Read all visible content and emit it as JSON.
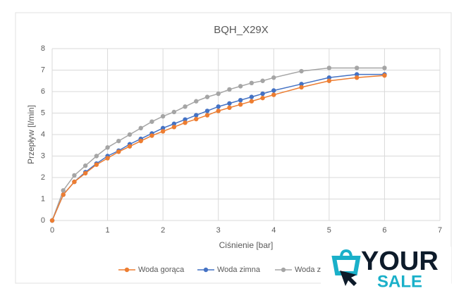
{
  "chart_data": {
    "type": "line",
    "title": "BQH_X29X",
    "xlabel": "Ciśnienie [bar]",
    "ylabel": "Przepływ [l/min]",
    "x": [
      0,
      0.2,
      0.4,
      0.6,
      0.8,
      1.0,
      1.2,
      1.4,
      1.6,
      1.8,
      2.0,
      2.2,
      2.4,
      2.6,
      2.8,
      3.0,
      3.2,
      3.4,
      3.6,
      3.8,
      4.0,
      4.5,
      5.0,
      5.5,
      6.0
    ],
    "series": [
      {
        "name": "Woda gorąca",
        "color": "#ed7d31",
        "values": [
          0,
          1.2,
          1.8,
          2.2,
          2.6,
          2.9,
          3.2,
          3.45,
          3.7,
          3.95,
          4.15,
          4.35,
          4.55,
          4.72,
          4.9,
          5.1,
          5.25,
          5.4,
          5.55,
          5.7,
          5.85,
          6.2,
          6.5,
          6.65,
          6.75
        ]
      },
      {
        "name": "Woda zimna",
        "color": "#4472c4",
        "values": [
          0,
          1.2,
          1.8,
          2.25,
          2.65,
          3.0,
          3.25,
          3.55,
          3.8,
          4.05,
          4.3,
          4.5,
          4.7,
          4.9,
          5.1,
          5.3,
          5.45,
          5.6,
          5.75,
          5.9,
          6.05,
          6.35,
          6.65,
          6.8,
          6.8
        ]
      },
      {
        "name": "Woda z",
        "color": "#a5a5a5",
        "values": [
          0,
          1.4,
          2.1,
          2.55,
          3.0,
          3.4,
          3.7,
          4.0,
          4.3,
          4.6,
          4.85,
          5.05,
          5.3,
          5.55,
          5.75,
          5.9,
          6.1,
          6.25,
          6.4,
          6.5,
          6.65,
          6.95,
          7.1,
          7.1,
          7.1
        ]
      }
    ],
    "xlim": [
      0,
      7
    ],
    "xticks": [
      0,
      1,
      2,
      3,
      4,
      5,
      6,
      7
    ],
    "ylim": [
      0,
      8
    ],
    "yticks": [
      0,
      1,
      2,
      3,
      4,
      5,
      6,
      7,
      8
    ],
    "grid": true
  },
  "watermark": {
    "line1": "YOUR",
    "line2": "SALE"
  }
}
